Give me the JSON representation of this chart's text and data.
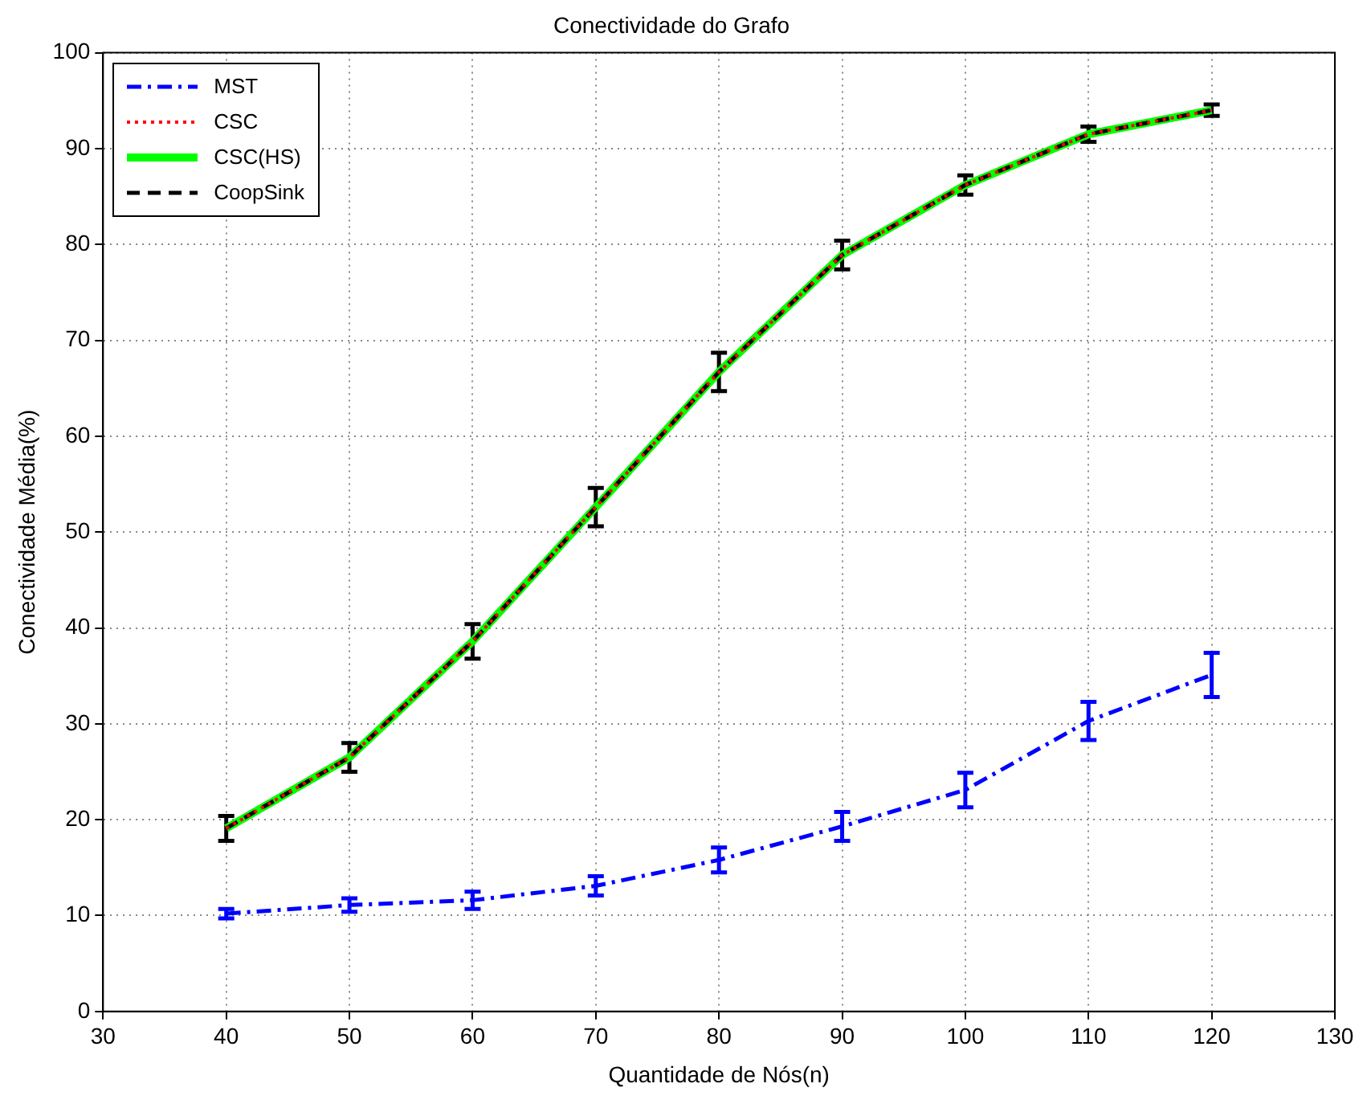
{
  "chart_data": {
    "type": "line",
    "title": "Conectividade do Grafo",
    "xlabel": "Quantidade de Nós(n)",
    "ylabel": "Conectividade Média(%)",
    "x": [
      40,
      50,
      60,
      70,
      80,
      90,
      100,
      110,
      120
    ],
    "series": [
      {
        "name": "MST",
        "color": "#0000ff",
        "line_style": "dashdot",
        "values": [
          10.2,
          11.1,
          11.6,
          13.1,
          15.8,
          19.3,
          23.1,
          30.3,
          35.1
        ],
        "errors": [
          0.5,
          0.7,
          0.9,
          1.0,
          1.3,
          1.5,
          1.8,
          2.0,
          2.3
        ]
      },
      {
        "name": "CSC",
        "color": "#ff0000",
        "line_style": "dotted",
        "values": [
          19.1,
          26.5,
          38.6,
          52.6,
          66.7,
          78.9,
          86.2,
          91.5,
          94.0
        ]
      },
      {
        "name": "CSC(HS)",
        "color": "#00ff00",
        "line_style": "solid",
        "values": [
          19.1,
          26.5,
          38.6,
          52.6,
          66.7,
          78.9,
          86.2,
          91.5,
          94.0
        ]
      },
      {
        "name": "CoopSink",
        "color": "#000000",
        "line_style": "dashed",
        "values": [
          19.1,
          26.5,
          38.6,
          52.6,
          66.7,
          78.9,
          86.2,
          91.5,
          94.0
        ],
        "errors": [
          1.3,
          1.5,
          1.8,
          2.0,
          2.0,
          1.5,
          1.0,
          0.8,
          0.6
        ]
      }
    ],
    "xlim": [
      30,
      130
    ],
    "xticks": [
      30,
      40,
      50,
      60,
      70,
      80,
      90,
      100,
      110,
      120,
      130
    ],
    "ylim": [
      0,
      100
    ],
    "yticks": [
      0,
      10,
      20,
      30,
      40,
      50,
      60,
      70,
      80,
      90,
      100
    ],
    "grid": true,
    "legend": "top left",
    "marker": "none"
  }
}
